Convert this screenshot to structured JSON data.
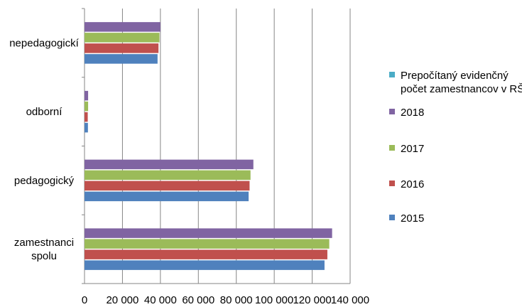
{
  "chart_data": {
    "type": "bar",
    "orientation": "horizontal",
    "categories": [
      "zamestnanci spolu",
      "pedagogický",
      "odborní",
      "nepedagogickí"
    ],
    "category_lines": [
      [
        "zamestnanci",
        "spolu"
      ],
      [
        "pedagogický"
      ],
      [
        "odborní"
      ],
      [
        "nepedagogickí"
      ]
    ],
    "series": [
      {
        "name": "2015",
        "color": "#4F81BD",
        "values": [
          126500,
          86500,
          1800,
          38500
        ]
      },
      {
        "name": "2016",
        "color": "#C0504D",
        "values": [
          128000,
          87000,
          1700,
          39000
        ]
      },
      {
        "name": "2017",
        "color": "#9BBB59",
        "values": [
          129000,
          87500,
          1900,
          39500
        ]
      },
      {
        "name": "2018",
        "color": "#8064A2",
        "values": [
          130500,
          89000,
          1900,
          40000
        ]
      }
    ],
    "legend": {
      "position": "right",
      "entries": [
        {
          "lines": [
            "Prepočítaný evidenčný",
            "počet zamestnancov v RŠ"
          ],
          "color": "#4BACC6"
        },
        {
          "lines": [
            "2018"
          ],
          "color": "#8064A2"
        },
        {
          "lines": [
            "2017"
          ],
          "color": "#9BBB59"
        },
        {
          "lines": [
            "2016"
          ],
          "color": "#C0504D"
        },
        {
          "lines": [
            "2015"
          ],
          "color": "#4F81BD"
        }
      ]
    },
    "x_ticks": [
      "0",
      "20 000",
      "40 000",
      "60 000",
      "80 000",
      "100 000",
      "120 000",
      "140 000"
    ],
    "xlim": [
      0,
      140000
    ],
    "grid": true,
    "title": "",
    "xlabel": "",
    "ylabel": ""
  }
}
